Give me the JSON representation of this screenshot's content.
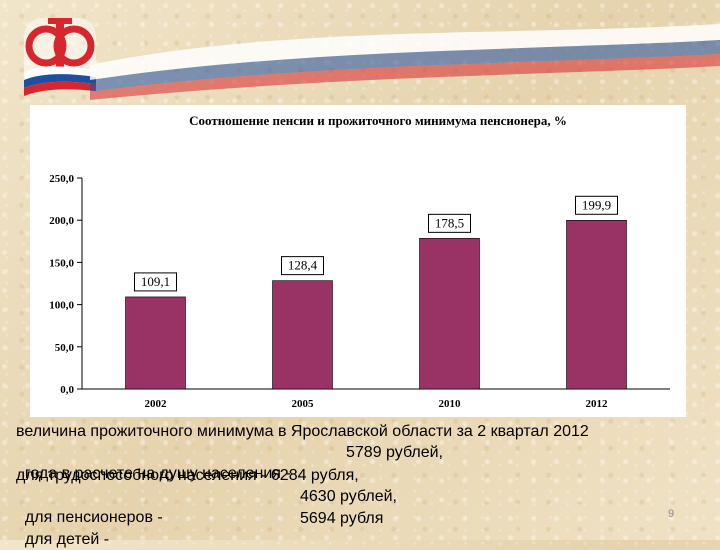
{
  "chart_data": {
    "type": "bar",
    "title": "Соотношение пенсии и прожиточного минимума пенсионера, %",
    "categories": [
      "2002",
      "2005",
      "2010",
      "2012"
    ],
    "values": [
      109.1,
      128.4,
      178.5,
      199.9
    ],
    "data_labels": [
      "109,1",
      "128,4",
      "178,5",
      "199,9"
    ],
    "ylim": [
      0,
      250
    ],
    "yticks": [
      0,
      50,
      100,
      150,
      200,
      250
    ],
    "ytick_labels": [
      "0,0",
      "50,0",
      "100,0",
      "150,0",
      "200,0",
      "250,0"
    ],
    "bar_color": "#993366",
    "grid": false,
    "legend": "none"
  },
  "caption": {
    "line1": "величина прожиточного минимума в Ярославской области за 2 квартал 2012",
    "line2_prefix": "года в расчете на душу населения -",
    "line2_value": "5789 рублей,",
    "line3": "для трудоспособного населения - 6284 рубля,",
    "line4_label": "для пенсионеров -",
    "line4_value": "4630 рублей,",
    "line5_label": "для детей -",
    "line5_value": "5694 рубля"
  },
  "page_number": "9",
  "colors": {
    "logo_red": "#d7262e",
    "flag_white": "#ffffff",
    "flag_blue": "#1f4fa0",
    "flag_red": "#d7262e"
  }
}
